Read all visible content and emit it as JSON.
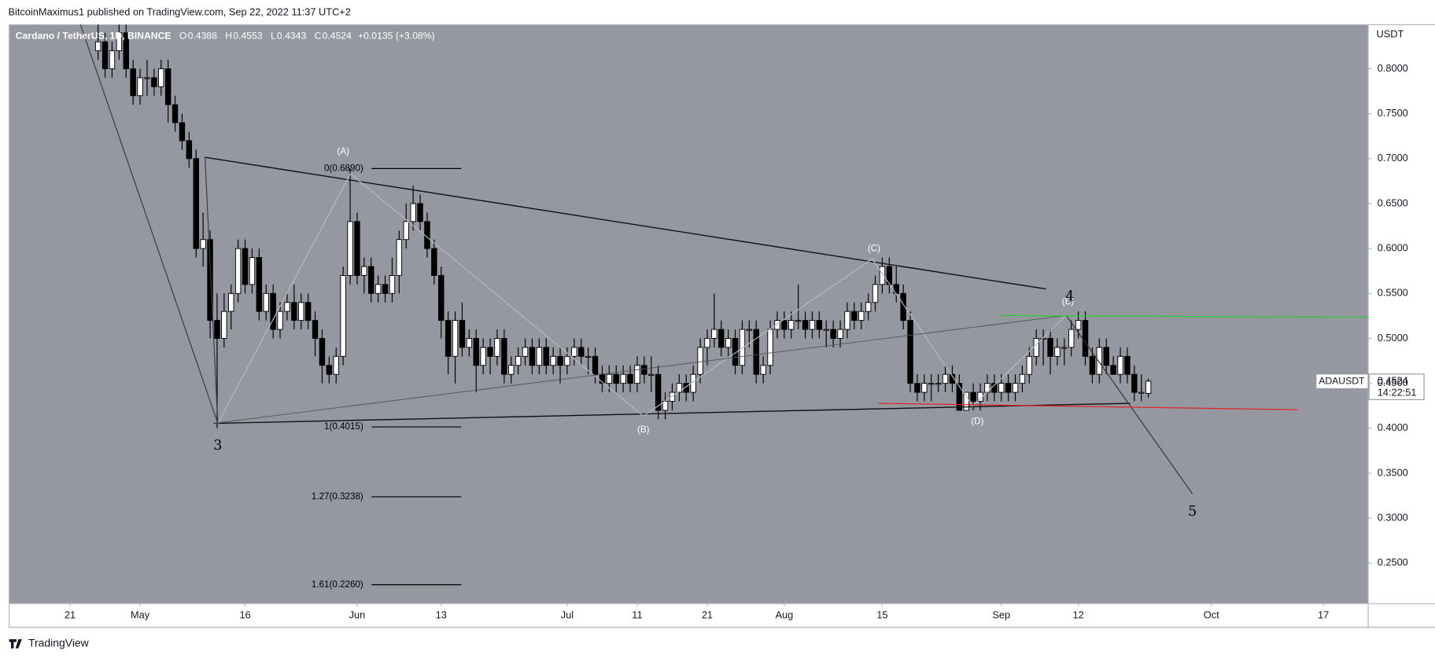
{
  "header": {
    "publisher": "BitcoinMaximus1 published on TradingView.com, Sep 22, 2022 11:37 UTC+2",
    "footer": "TradingView"
  },
  "chart_data": {
    "type": "candlestick",
    "title": "Cardano / TetherUS, 1D, BINANCE",
    "ohlc_letters": [
      "O",
      "H",
      "L",
      "C"
    ],
    "change": "+0.0135 (+3.08%)",
    "countdown": "14:22:51",
    "y_unit": "USDT",
    "grid": false,
    "background": "#9598a1",
    "series": [
      {
        "name": "ADAUSDT",
        "up_color": "#ffffff",
        "down_color": "#000000",
        "ohlc": [
          [
            0.82,
            0.85,
            0.81,
            0.83
          ],
          [
            0.83,
            0.84,
            0.79,
            0.8
          ],
          [
            0.8,
            0.83,
            0.79,
            0.82
          ],
          [
            0.82,
            0.85,
            0.81,
            0.84
          ],
          [
            0.84,
            0.85,
            0.79,
            0.8
          ],
          [
            0.8,
            0.81,
            0.76,
            0.77
          ],
          [
            0.77,
            0.8,
            0.76,
            0.79
          ],
          [
            0.79,
            0.81,
            0.77,
            0.79
          ],
          [
            0.79,
            0.8,
            0.77,
            0.78
          ],
          [
            0.78,
            0.81,
            0.77,
            0.8
          ],
          [
            0.8,
            0.81,
            0.74,
            0.76
          ],
          [
            0.76,
            0.77,
            0.73,
            0.74
          ],
          [
            0.74,
            0.75,
            0.71,
            0.72
          ],
          [
            0.72,
            0.73,
            0.69,
            0.7
          ],
          [
            0.7,
            0.71,
            0.59,
            0.6
          ],
          [
            0.6,
            0.64,
            0.58,
            0.61
          ],
          [
            0.61,
            0.62,
            0.5,
            0.52
          ],
          [
            0.52,
            0.55,
            0.4,
            0.5
          ],
          [
            0.5,
            0.55,
            0.49,
            0.53
          ],
          [
            0.53,
            0.56,
            0.51,
            0.55
          ],
          [
            0.55,
            0.61,
            0.54,
            0.6
          ],
          [
            0.6,
            0.61,
            0.55,
            0.56
          ],
          [
            0.56,
            0.6,
            0.55,
            0.59
          ],
          [
            0.59,
            0.6,
            0.52,
            0.53
          ],
          [
            0.53,
            0.56,
            0.52,
            0.55
          ],
          [
            0.55,
            0.56,
            0.5,
            0.51
          ],
          [
            0.51,
            0.54,
            0.5,
            0.53
          ],
          [
            0.53,
            0.55,
            0.52,
            0.54
          ],
          [
            0.54,
            0.56,
            0.51,
            0.52
          ],
          [
            0.52,
            0.55,
            0.51,
            0.54
          ],
          [
            0.54,
            0.55,
            0.51,
            0.52
          ],
          [
            0.52,
            0.53,
            0.48,
            0.5
          ],
          [
            0.5,
            0.51,
            0.45,
            0.47
          ],
          [
            0.47,
            0.48,
            0.45,
            0.46
          ],
          [
            0.46,
            0.49,
            0.45,
            0.48
          ],
          [
            0.48,
            0.58,
            0.47,
            0.57
          ],
          [
            0.57,
            0.689,
            0.56,
            0.63
          ],
          [
            0.63,
            0.64,
            0.56,
            0.57
          ],
          [
            0.57,
            0.59,
            0.55,
            0.58
          ],
          [
            0.58,
            0.59,
            0.54,
            0.55
          ],
          [
            0.55,
            0.57,
            0.54,
            0.56
          ],
          [
            0.56,
            0.57,
            0.54,
            0.55
          ],
          [
            0.55,
            0.59,
            0.54,
            0.57
          ],
          [
            0.57,
            0.62,
            0.55,
            0.61
          ],
          [
            0.61,
            0.65,
            0.6,
            0.63
          ],
          [
            0.63,
            0.67,
            0.62,
            0.65
          ],
          [
            0.65,
            0.66,
            0.62,
            0.63
          ],
          [
            0.63,
            0.64,
            0.59,
            0.6
          ],
          [
            0.6,
            0.61,
            0.56,
            0.57
          ],
          [
            0.57,
            0.58,
            0.5,
            0.52
          ],
          [
            0.52,
            0.53,
            0.46,
            0.48
          ],
          [
            0.48,
            0.53,
            0.45,
            0.52
          ],
          [
            0.52,
            0.54,
            0.48,
            0.49
          ],
          [
            0.49,
            0.51,
            0.48,
            0.5
          ],
          [
            0.5,
            0.51,
            0.44,
            0.47
          ],
          [
            0.47,
            0.5,
            0.46,
            0.49
          ],
          [
            0.49,
            0.5,
            0.46,
            0.48
          ],
          [
            0.48,
            0.51,
            0.47,
            0.5
          ],
          [
            0.5,
            0.51,
            0.45,
            0.46
          ],
          [
            0.46,
            0.48,
            0.45,
            0.47
          ],
          [
            0.47,
            0.49,
            0.46,
            0.48
          ],
          [
            0.48,
            0.5,
            0.47,
            0.49
          ],
          [
            0.49,
            0.5,
            0.46,
            0.47
          ],
          [
            0.47,
            0.5,
            0.46,
            0.49
          ],
          [
            0.49,
            0.5,
            0.46,
            0.47
          ],
          [
            0.47,
            0.49,
            0.46,
            0.48
          ],
          [
            0.48,
            0.49,
            0.45,
            0.47
          ],
          [
            0.47,
            0.49,
            0.46,
            0.48
          ],
          [
            0.48,
            0.5,
            0.47,
            0.49
          ],
          [
            0.49,
            0.5,
            0.47,
            0.48
          ],
          [
            0.48,
            0.49,
            0.46,
            0.48
          ],
          [
            0.48,
            0.49,
            0.45,
            0.46
          ],
          [
            0.46,
            0.47,
            0.44,
            0.45
          ],
          [
            0.45,
            0.47,
            0.44,
            0.46
          ],
          [
            0.46,
            0.47,
            0.44,
            0.45
          ],
          [
            0.45,
            0.47,
            0.44,
            0.46
          ],
          [
            0.46,
            0.47,
            0.44,
            0.45
          ],
          [
            0.45,
            0.48,
            0.44,
            0.47
          ],
          [
            0.47,
            0.48,
            0.45,
            0.46
          ],
          [
            0.46,
            0.48,
            0.44,
            0.46
          ],
          [
            0.46,
            0.47,
            0.41,
            0.42
          ],
          [
            0.42,
            0.44,
            0.41,
            0.43
          ],
          [
            0.43,
            0.45,
            0.42,
            0.44
          ],
          [
            0.44,
            0.46,
            0.43,
            0.45
          ],
          [
            0.45,
            0.46,
            0.43,
            0.44
          ],
          [
            0.44,
            0.47,
            0.43,
            0.46
          ],
          [
            0.46,
            0.5,
            0.45,
            0.49
          ],
          [
            0.49,
            0.51,
            0.47,
            0.5
          ],
          [
            0.5,
            0.55,
            0.49,
            0.51
          ],
          [
            0.51,
            0.52,
            0.48,
            0.49
          ],
          [
            0.49,
            0.51,
            0.48,
            0.5
          ],
          [
            0.5,
            0.51,
            0.46,
            0.47
          ],
          [
            0.47,
            0.52,
            0.46,
            0.51
          ],
          [
            0.51,
            0.52,
            0.49,
            0.51
          ],
          [
            0.51,
            0.52,
            0.45,
            0.46
          ],
          [
            0.46,
            0.48,
            0.45,
            0.47
          ],
          [
            0.47,
            0.52,
            0.46,
            0.51
          ],
          [
            0.51,
            0.53,
            0.5,
            0.52
          ],
          [
            0.52,
            0.53,
            0.5,
            0.51
          ],
          [
            0.51,
            0.53,
            0.5,
            0.52
          ],
          [
            0.52,
            0.56,
            0.51,
            0.52
          ],
          [
            0.52,
            0.53,
            0.5,
            0.51
          ],
          [
            0.51,
            0.53,
            0.5,
            0.52
          ],
          [
            0.52,
            0.53,
            0.5,
            0.51
          ],
          [
            0.51,
            0.52,
            0.49,
            0.51
          ],
          [
            0.51,
            0.52,
            0.49,
            0.5
          ],
          [
            0.5,
            0.52,
            0.49,
            0.51
          ],
          [
            0.51,
            0.54,
            0.5,
            0.53
          ],
          [
            0.53,
            0.54,
            0.51,
            0.52
          ],
          [
            0.52,
            0.54,
            0.51,
            0.53
          ],
          [
            0.53,
            0.55,
            0.52,
            0.54
          ],
          [
            0.54,
            0.57,
            0.53,
            0.56
          ],
          [
            0.56,
            0.59,
            0.55,
            0.58
          ],
          [
            0.58,
            0.59,
            0.55,
            0.56
          ],
          [
            0.56,
            0.58,
            0.54,
            0.55
          ],
          [
            0.55,
            0.56,
            0.51,
            0.52
          ],
          [
            0.52,
            0.53,
            0.44,
            0.45
          ],
          [
            0.45,
            0.46,
            0.43,
            0.44
          ],
          [
            0.44,
            0.46,
            0.43,
            0.45
          ],
          [
            0.45,
            0.46,
            0.43,
            0.45
          ],
          [
            0.45,
            0.46,
            0.44,
            0.45
          ],
          [
            0.45,
            0.47,
            0.44,
            0.46
          ],
          [
            0.46,
            0.47,
            0.44,
            0.45
          ],
          [
            0.45,
            0.46,
            0.42,
            0.42
          ],
          [
            0.42,
            0.44,
            0.42,
            0.44
          ],
          [
            0.44,
            0.45,
            0.42,
            0.43
          ],
          [
            0.43,
            0.45,
            0.42,
            0.44
          ],
          [
            0.44,
            0.46,
            0.43,
            0.45
          ],
          [
            0.45,
            0.46,
            0.43,
            0.44
          ],
          [
            0.44,
            0.46,
            0.43,
            0.45
          ],
          [
            0.45,
            0.46,
            0.43,
            0.44
          ],
          [
            0.44,
            0.46,
            0.43,
            0.45
          ],
          [
            0.45,
            0.47,
            0.44,
            0.46
          ],
          [
            0.46,
            0.49,
            0.45,
            0.48
          ],
          [
            0.48,
            0.51,
            0.47,
            0.5
          ],
          [
            0.5,
            0.51,
            0.47,
            0.5
          ],
          [
            0.5,
            0.51,
            0.46,
            0.48
          ],
          [
            0.48,
            0.5,
            0.47,
            0.49
          ],
          [
            0.49,
            0.5,
            0.47,
            0.49
          ],
          [
            0.49,
            0.52,
            0.48,
            0.51
          ],
          [
            0.51,
            0.53,
            0.5,
            0.52
          ],
          [
            0.52,
            0.53,
            0.47,
            0.48
          ],
          [
            0.48,
            0.49,
            0.45,
            0.46
          ],
          [
            0.46,
            0.5,
            0.45,
            0.49
          ],
          [
            0.49,
            0.5,
            0.46,
            0.47
          ],
          [
            0.47,
            0.48,
            0.46,
            0.46
          ],
          [
            0.46,
            0.49,
            0.45,
            0.48
          ],
          [
            0.48,
            0.49,
            0.45,
            0.46
          ],
          [
            0.46,
            0.47,
            0.43,
            0.44
          ],
          [
            0.44,
            0.46,
            0.43,
            0.44
          ],
          [
            0.4388,
            0.4553,
            0.4343,
            0.4524
          ]
        ]
      }
    ],
    "xlim": [
      -12.7,
      181.4
    ],
    "xticks": [
      {
        "value": -4,
        "label": "21"
      },
      {
        "value": 6,
        "label": "May"
      },
      {
        "value": 21,
        "label": "16"
      },
      {
        "value": 37,
        "label": "Jun"
      },
      {
        "value": 49,
        "label": "13"
      },
      {
        "value": 67,
        "label": "Jul"
      },
      {
        "value": 77,
        "label": "11"
      },
      {
        "value": 87,
        "label": "21"
      },
      {
        "value": 98,
        "label": "Aug"
      },
      {
        "value": 112,
        "label": "15"
      },
      {
        "value": 129,
        "label": "Sep"
      },
      {
        "value": 140,
        "label": "12"
      },
      {
        "value": 159,
        "label": "Oct"
      },
      {
        "value": 175,
        "label": "17"
      }
    ],
    "ylim": [
      0.205,
      0.849
    ],
    "yticks": [
      {
        "value": 0.25,
        "label": "0.2500"
      },
      {
        "value": 0.3,
        "label": "0.3000"
      },
      {
        "value": 0.35,
        "label": "0.3500"
      },
      {
        "value": 0.4,
        "label": "0.4000"
      },
      {
        "value": 0.45,
        "label": "0.4500"
      },
      {
        "value": 0.5,
        "label": "0.5000"
      },
      {
        "value": 0.55,
        "label": "0.5500"
      },
      {
        "value": 0.6,
        "label": "0.6000"
      },
      {
        "value": 0.65,
        "label": "0.6500"
      },
      {
        "value": 0.7,
        "label": "0.7000"
      },
      {
        "value": 0.75,
        "label": "0.7500"
      },
      {
        "value": 0.8,
        "label": "0.8000"
      }
    ],
    "fib_levels": [
      {
        "label": "0(0.6890)",
        "price": 0.689
      },
      {
        "label": "1(0.4015)",
        "price": 0.4015
      },
      {
        "label": "1.27(0.3238)",
        "price": 0.3238
      },
      {
        "label": "1.61(0.2260)",
        "price": 0.226
      }
    ],
    "wave_labels": [
      "(A)",
      "(B)",
      "(C)",
      "(D)",
      "(E)",
      "3",
      "4",
      "5"
    ]
  }
}
